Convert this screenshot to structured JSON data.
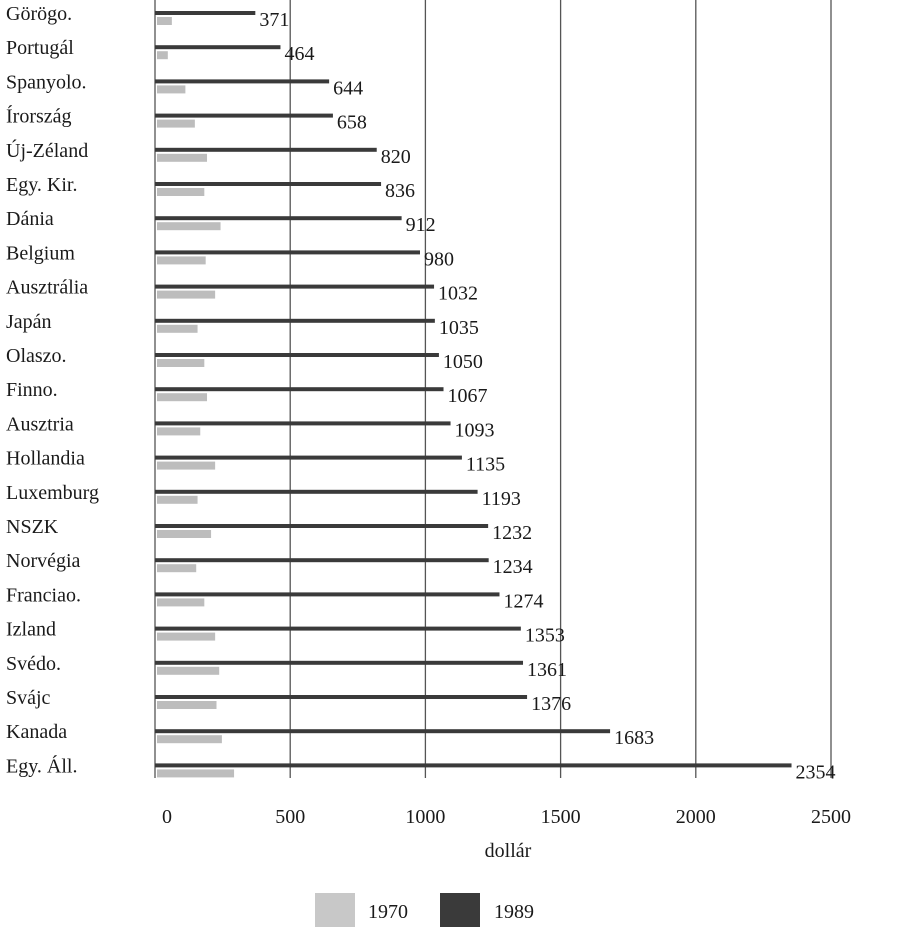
{
  "chart_data": {
    "type": "bar",
    "orientation": "horizontal",
    "categories": [
      "Görögo.",
      "Portugál",
      "Spanyolo.",
      "Írország",
      "Új-Zéland",
      "Egy. Kir.",
      "Dánia",
      "Belgium",
      "Ausztrália",
      "Japán",
      "Olaszo.",
      "Finno.",
      "Ausztria",
      "Hollandia",
      "Luxemburg",
      "NSZK",
      "Norvégia",
      "Franciao.",
      "Izland",
      "Svédo.",
      "Svájc",
      "Kanada",
      "Egy. Áll."
    ],
    "series": [
      {
        "name": "1970",
        "values": [
          55,
          40,
          105,
          140,
          185,
          175,
          235,
          180,
          215,
          150,
          175,
          185,
          160,
          215,
          150,
          200,
          145,
          175,
          215,
          230,
          220,
          240,
          285
        ]
      },
      {
        "name": "1989",
        "values": [
          371,
          464,
          644,
          658,
          820,
          836,
          912,
          980,
          1032,
          1035,
          1050,
          1067,
          1093,
          1135,
          1193,
          1232,
          1234,
          1274,
          1353,
          1361,
          1376,
          1683,
          2354
        ]
      }
    ],
    "value_labels": [
      "371",
      "464",
      "644",
      "658",
      "820",
      "836",
      "912",
      "980",
      "1032",
      "1035",
      "1050",
      "1067",
      "1093",
      "1135",
      "1193",
      "1232",
      "1234",
      "1274",
      "1353",
      "1361",
      "1376",
      "1683",
      "2354"
    ],
    "xlabel": "dollár",
    "xticks": [
      0,
      500,
      1000,
      1500,
      2000,
      2500
    ],
    "xtick_labels": [
      "0",
      "500",
      "1000",
      "1500",
      "2000",
      "2500"
    ],
    "xlim": [
      0,
      2500
    ],
    "grid": "vertical",
    "legend": {
      "placement": "bottom",
      "entries": [
        "1970",
        "1989"
      ]
    },
    "colors": {
      "1970": "#bdbdbd",
      "1989": "#3a3a3a"
    }
  }
}
